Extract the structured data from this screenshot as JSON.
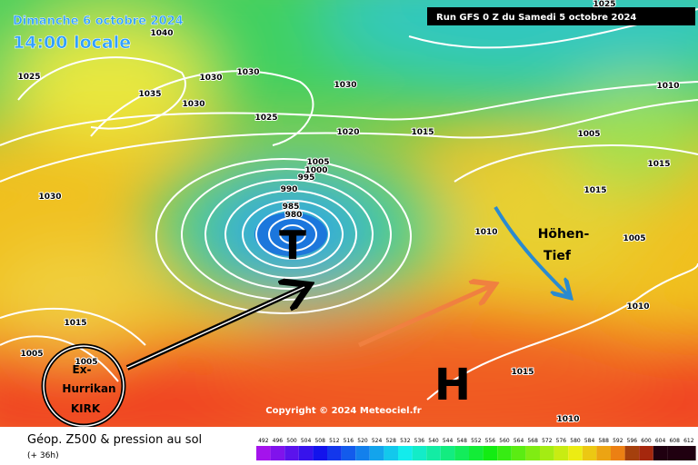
{
  "header": {
    "date": "Dimanche 6 octobre 2024",
    "time": "14:00 locale",
    "run": "Run GFS 0 Z du Samedi 5 octobre 2024"
  },
  "map": {
    "low_symbol": "T",
    "high_symbol": "H",
    "annotation_line1": "Höhen-",
    "annotation_line2": "Tief",
    "storm_line1": "Ex-",
    "storm_line2": "Hurrikan",
    "storm_line3": "KIRK",
    "copyright": "Copyright © 2024 Meteociel.fr",
    "isobar_labels": [
      "1040",
      "1025",
      "1030",
      "1035",
      "1030",
      "1030",
      "1030",
      "1025",
      "1020",
      "1015",
      "1005",
      "1015",
      "1010",
      "1025",
      "1005",
      "1000",
      "995",
      "990",
      "985",
      "980",
      "1030",
      "1015",
      "1010",
      "1005",
      "1010",
      "1015",
      "1005",
      "1005",
      "1015",
      "1010"
    ]
  },
  "footer": {
    "title": "Géop. Z500 & pression au sol",
    "lead": "(+ 36h)",
    "scale": [
      "492",
      "496",
      "500",
      "504",
      "508",
      "512",
      "516",
      "520",
      "524",
      "528",
      "532",
      "536",
      "540",
      "544",
      "548",
      "552",
      "556",
      "560",
      "564",
      "568",
      "572",
      "576",
      "580",
      "584",
      "588",
      "592",
      "596",
      "600",
      "604",
      "608",
      "612"
    ]
  }
}
